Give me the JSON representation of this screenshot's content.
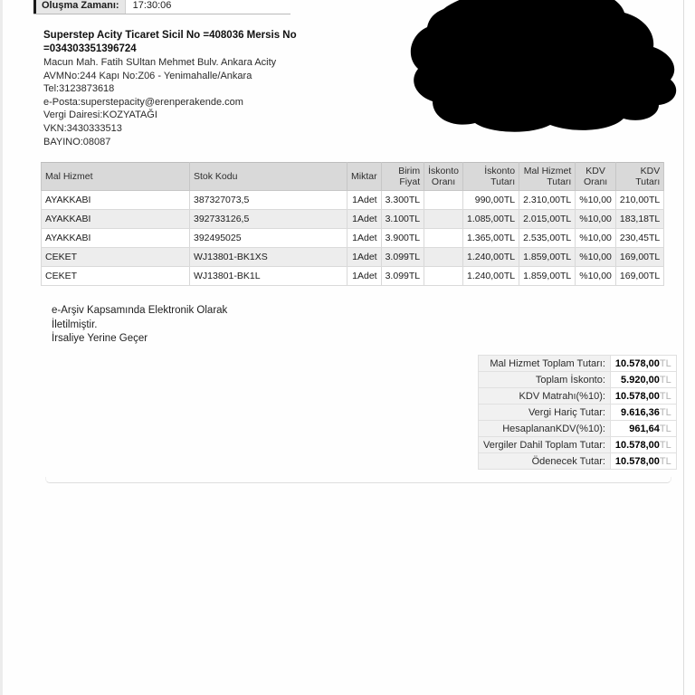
{
  "creation": {
    "label": "Oluşma Zamanı:",
    "value": "17:30:06"
  },
  "seller": {
    "title_line1": "Superstep Acity Ticaret Sicil No =408036 Mersis No",
    "title_line2": "=034303351396724",
    "address_line1": "Macun Mah. Fatih SUltan Mehmet Bulv. Ankara Acity",
    "address_line2": "AVMNo:244 Kapı No:Z06 - Yenimahalle/Ankara",
    "phone": "Tel:3123873618",
    "email": "e-Posta:superstepacity@erenperakende.com",
    "tax_office": "Vergi Dairesi:KOZYATAĞI",
    "vkn": "VKN:3430333513",
    "bayino": "BAYINO:08087"
  },
  "items_table": {
    "headers": [
      "Mal Hizmet",
      "Stok Kodu",
      "Miktar",
      "Birim Fiyat",
      "İskonto Oranı",
      "İskonto Tutarı",
      "Mal Hizmet Tutarı",
      "KDV Oranı",
      "KDV Tutarı"
    ],
    "rows": [
      [
        "AYAKKABI",
        "387327073,5",
        "1Adet",
        "3.300TL",
        "",
        "990,00TL",
        "2.310,00TL",
        "%10,00",
        "210,00TL"
      ],
      [
        "AYAKKABI",
        "392733126,5",
        "1Adet",
        "3.100TL",
        "",
        "1.085,00TL",
        "2.015,00TL",
        "%10,00",
        "183,18TL"
      ],
      [
        "AYAKKABI",
        "392495025",
        "1Adet",
        "3.900TL",
        "",
        "1.365,00TL",
        "2.535,00TL",
        "%10,00",
        "230,45TL"
      ],
      [
        "CEKET",
        "WJ13801-BK1XS",
        "1Adet",
        "3.099TL",
        "",
        "1.240,00TL",
        "1.859,00TL",
        "%10,00",
        "169,00TL"
      ],
      [
        "CEKET",
        "WJ13801-BK1L",
        "1Adet",
        "3.099TL",
        "",
        "1.240,00TL",
        "1.859,00TL",
        "%10,00",
        "169,00TL"
      ]
    ]
  },
  "notes": [
    "e-Arşiv Kapsamında Elektronik Olarak",
    "İletilmiştir.",
    "İrsaliye Yerine Geçer"
  ],
  "totals": {
    "rows": [
      {
        "label": "Mal Hizmet Toplam Tutarı:",
        "value": "10.578,00",
        "currency": "TL"
      },
      {
        "label": "Toplam İskonto:",
        "value": "5.920,00",
        "currency": "TL"
      },
      {
        "label": "KDV Matrahı(%10):",
        "value": "10.578,00",
        "currency": "TL"
      },
      {
        "label": "Vergi Hariç Tutar:",
        "value": "9.616,36",
        "currency": "TL"
      },
      {
        "label": "HesaplananKDV(%10):",
        "value": "961,64",
        "currency": "TL"
      },
      {
        "label": "Vergiler Dahil Toplam Tutar:",
        "value": "10.578,00",
        "currency": "TL"
      },
      {
        "label": "Ödenecek Tutar:",
        "value": "10.578,00",
        "currency": "TL"
      }
    ]
  },
  "colors": {
    "table_header_bg": "#d9d9d9",
    "alt_row_bg": "#ededed",
    "totals_label_bg": "#f1f1f1",
    "currency_muted": "#b3b3b3",
    "redaction": "#000000"
  }
}
